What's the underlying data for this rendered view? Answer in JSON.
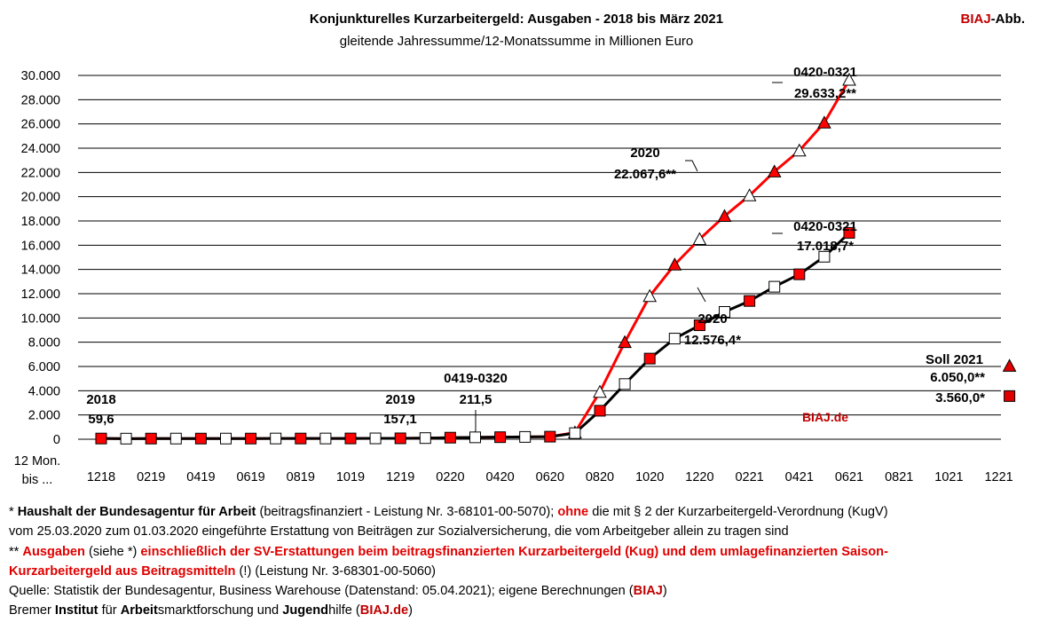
{
  "header": {
    "title": "Konjunkturelles Kurzarbeitergeld:  Ausgaben - 2018 bis März 2021",
    "subtitle": "gleitende  Jahressumme/12-Monatssumme in Millionen Euro",
    "brand_red": "BIAJ",
    "brand_rest": "-Abb."
  },
  "chart_data": {
    "type": "line",
    "title": "Konjunkturelles Kurzarbeitergeld:  Ausgaben - 2018 bis März 2021",
    "subtitle": "gleitende  Jahressumme/12-Monatssumme in Millionen Euro",
    "xlabel": "12 Mon. bis ...",
    "ylabel": "",
    "ylim": [
      0,
      30000
    ],
    "grid": true,
    "x_tick_labels": [
      "1218",
      "0219",
      "0419",
      "0619",
      "0819",
      "1019",
      "1219",
      "0220",
      "0420",
      "0620",
      "0820",
      "1020",
      "1220",
      "0221",
      "0421",
      "0621",
      "0821",
      "1021",
      "1221"
    ],
    "y_tick_labels": [
      "0",
      "2.000",
      "4.000",
      "6.000",
      "8.000",
      "10.000",
      "12.000",
      "14.000",
      "16.000",
      "18.000",
      "20.000",
      "22.000",
      "24.000",
      "26.000",
      "28.000",
      "30.000"
    ],
    "y_ticks": [
      0,
      2000,
      4000,
      6000,
      8000,
      10000,
      12000,
      14000,
      16000,
      18000,
      20000,
      22000,
      24000,
      26000,
      28000,
      30000
    ],
    "series": [
      {
        "color": "#000000",
        "marker": "square",
        "values": [
          59.6,
          50,
          55,
          55,
          55,
          55,
          57,
          60,
          60,
          62,
          65,
          70,
          75,
          95,
          130,
          157.1,
          170,
          190,
          211.5,
          500,
          2350,
          4550,
          6650,
          8300,
          9400,
          10500,
          11400,
          12576.4,
          13600,
          15050,
          17018.7
        ]
      },
      {
        "color": "#ff0000",
        "marker": "triangle",
        "values": [
          59.6,
          50,
          55,
          55,
          55,
          55,
          57,
          60,
          60,
          62,
          65,
          70,
          75,
          95,
          130,
          157.1,
          170,
          190,
          211.5,
          550,
          3900,
          8000,
          11800,
          14400,
          16500,
          18400,
          20100,
          22067.6,
          23800,
          26100,
          29633.2
        ]
      }
    ],
    "targets": [
      {
        "marker": "triangle",
        "value": 6050.0,
        "x_index": 36,
        "color": "#e00000"
      },
      {
        "marker": "square",
        "value": 3560.0,
        "x_index": 36,
        "color": "#e00000"
      }
    ],
    "annotations": [
      {
        "line1": "2018",
        "line2": "59,6"
      },
      {
        "line1": "2019",
        "line2": "157,1"
      },
      {
        "line1": "0419-0320",
        "line2": "211,5"
      },
      {
        "line1": "2020",
        "line2": "22.067,6**"
      },
      {
        "line1": "0420-0321",
        "line2": "29.633,2**"
      },
      {
        "line1": "0420-0321",
        "line2": "17.018,7*"
      },
      {
        "line1": "2020",
        "line2": "12.576,4*"
      },
      {
        "line1": "Soll 2021",
        "line2": "6.050,0**",
        "line3": "3.560,0*"
      }
    ],
    "watermark": "BIAJ.de"
  },
  "notes": {
    "l1": {
      "a": "* ",
      "b": "Haushalt der Bundesagentur für Arbeit",
      "c": " (beitragsfinanziert - Leistung Nr. 3-68101-00-5070); ",
      "d": "ohne",
      "e": " die mit § 2 der Kurzarbeitergeld-Verordnung (KugV)"
    },
    "l2": "vom 25.03.2020 zum 01.03.2020 eingeführte Erstattung von Beiträgen zur Sozialversicherung, die vom Arbeitgeber allein zu tragen sind",
    "l3": {
      "a": "** ",
      "b": "Ausgaben",
      "c": " (siehe *) ",
      "d": "einschließlich der SV-Erstattungen beim beitragsfinanzierten Kurzarbeitergeld (Kug) und dem umlagefinanzierten Saison-"
    },
    "l4": {
      "a": "Kurzarbeitergeld aus Beitragsmitteln",
      "b": " (!) (Leistung Nr. 3-68301-00-5060)"
    },
    "l5": {
      "a": "Quelle:  Statistik der Bundesagentur, Business Warehouse (Datenstand: 05.04.2021); eigene Berechnungen (",
      "b": "BIAJ",
      "c": ")"
    },
    "l6": {
      "a": "Bremer ",
      "b": "Institut",
      "c": " für ",
      "d": "Arbeit",
      "e": "smarktforschung und ",
      "f": "Jugend",
      "g": "hilfe (",
      "h": "BIAJ.de",
      "i": ")"
    }
  }
}
